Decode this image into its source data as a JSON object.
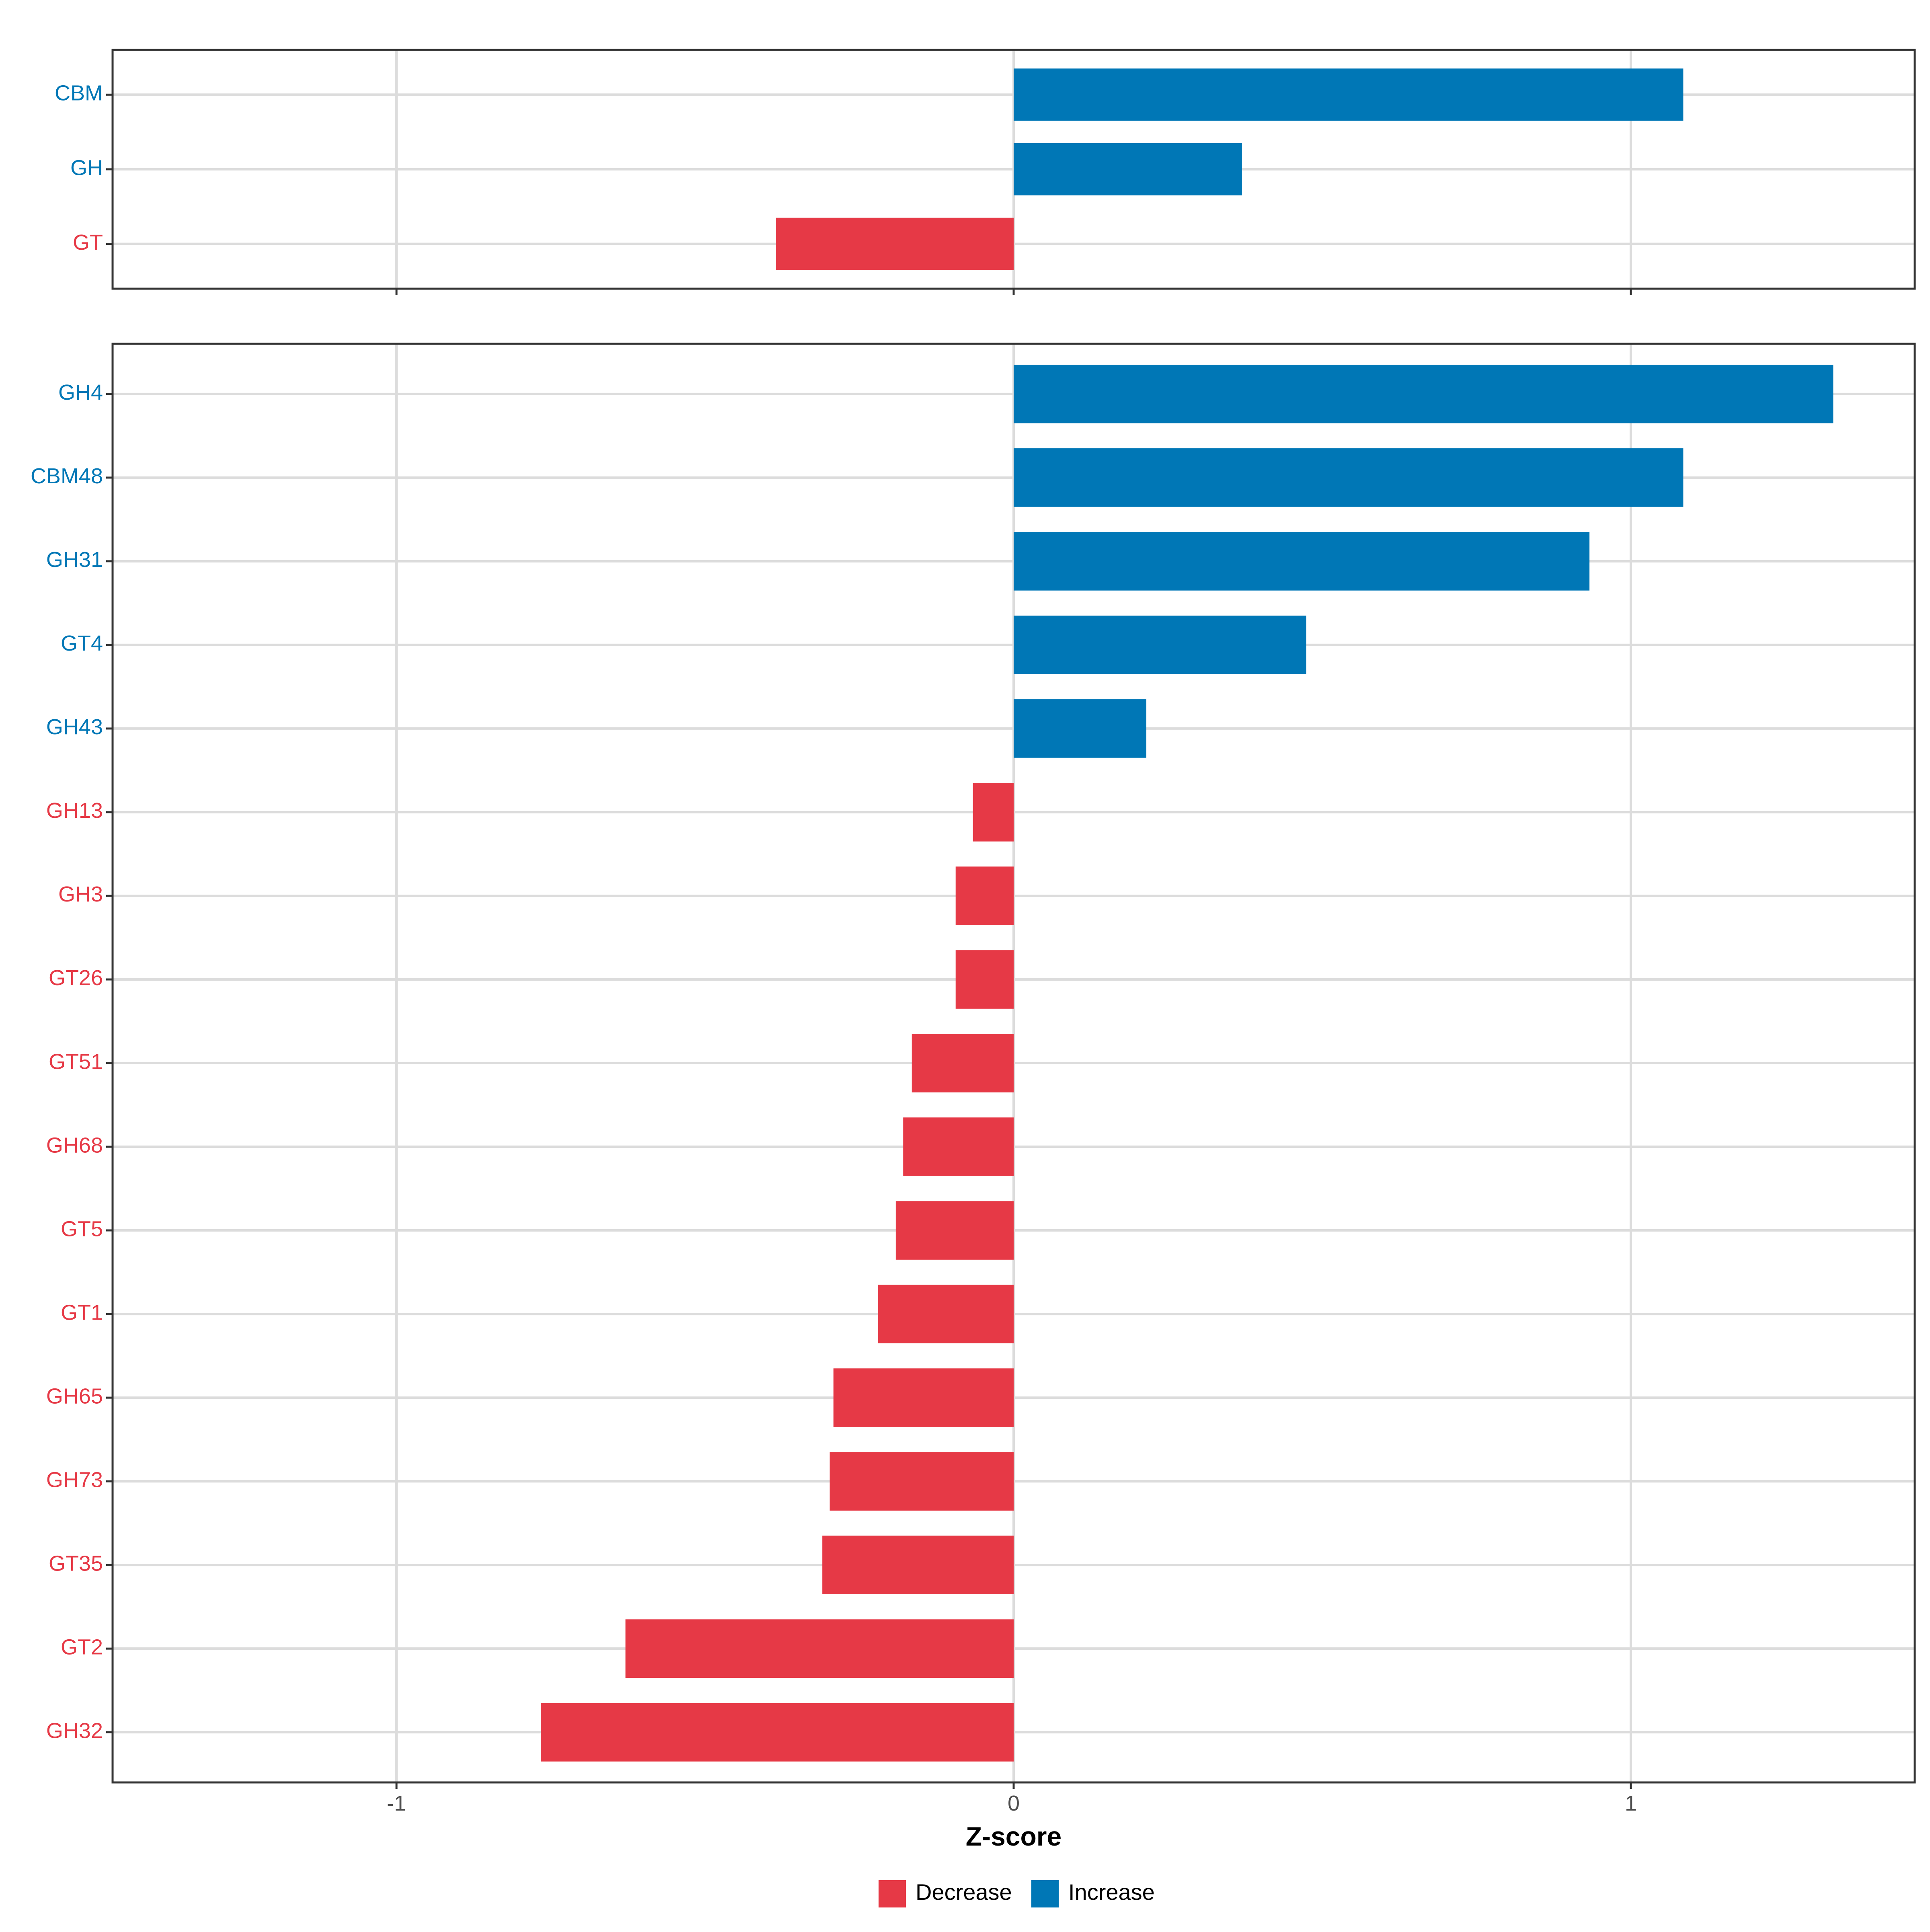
{
  "chart_data": {
    "type": "bar",
    "orientation": "horizontal",
    "xlabel": "Z-score",
    "xlim": [
      -1.46,
      1.46
    ],
    "x_ticks": [
      -1,
      0,
      1
    ],
    "x_tick_labels": [
      "-1",
      "0",
      "1"
    ],
    "grid": true,
    "legend_placement": "bottom",
    "colors": {
      "Decrease": "#E63946",
      "Increase": "#0077B6"
    },
    "legend": [
      {
        "label": "Decrease",
        "color": "#E63946"
      },
      {
        "label": "Increase",
        "color": "#0077B6"
      }
    ],
    "panels": [
      {
        "categories": [
          "CBM",
          "GH",
          "GT"
        ],
        "values": [
          1.085,
          0.37,
          -0.385
        ],
        "groups": [
          "Increase",
          "Increase",
          "Decrease"
        ]
      },
      {
        "categories": [
          "GH4",
          "CBM48",
          "GH31",
          "GT4",
          "GH43",
          "GH13",
          "GH3",
          "GT26",
          "GT51",
          "GH68",
          "GT5",
          "GT1",
          "GH65",
          "GH73",
          "GT35",
          "GT2",
          "GH32"
        ],
        "values": [
          1.328,
          1.085,
          0.933,
          0.474,
          0.215,
          -0.066,
          -0.094,
          -0.094,
          -0.165,
          -0.179,
          -0.191,
          -0.22,
          -0.292,
          -0.298,
          -0.31,
          -0.629,
          -0.766
        ],
        "groups": [
          "Increase",
          "Increase",
          "Increase",
          "Increase",
          "Increase",
          "Decrease",
          "Decrease",
          "Decrease",
          "Decrease",
          "Decrease",
          "Decrease",
          "Decrease",
          "Decrease",
          "Decrease",
          "Decrease",
          "Decrease",
          "Decrease"
        ]
      }
    ]
  }
}
